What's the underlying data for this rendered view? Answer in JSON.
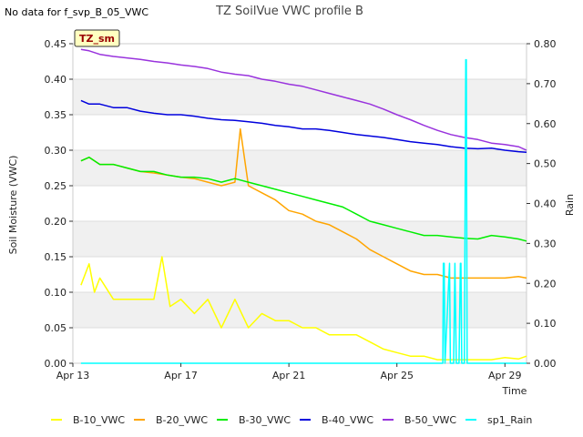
{
  "note": "No data for f_svp_B_05_VWC",
  "chart_data": {
    "type": "line",
    "title": "TZ SoilVue VWC profile B",
    "badge": "TZ_sm",
    "xlabel": "Time",
    "ylabel": "Soil Moisture (VWC)",
    "y2label": "Rain",
    "xlim": [
      0,
      16.8
    ],
    "ylim": [
      0.0,
      0.45
    ],
    "y2lim": [
      0.0,
      0.8
    ],
    "x_ticks": [
      {
        "value": 0,
        "label": "Apr 13"
      },
      {
        "value": 4,
        "label": "Apr 17"
      },
      {
        "value": 8,
        "label": "Apr 21"
      },
      {
        "value": 12,
        "label": "Apr 25"
      },
      {
        "value": 16,
        "label": "Apr 29"
      }
    ],
    "y_ticks": [
      "0.00",
      "0.05",
      "0.10",
      "0.15",
      "0.20",
      "0.25",
      "0.30",
      "0.35",
      "0.40",
      "0.45"
    ],
    "y2_ticks": [
      "0.00",
      "0.10",
      "0.20",
      "0.30",
      "0.40",
      "0.50",
      "0.60",
      "0.70",
      "0.80"
    ],
    "grid": true,
    "legend_position": "bottom",
    "series": [
      {
        "name": "B-10_VWC",
        "color": "#ffff00",
        "axis": "left",
        "x": [
          0.3,
          0.6,
          0.8,
          1.0,
          1.5,
          2.0,
          2.5,
          3.0,
          3.3,
          3.6,
          4.0,
          4.5,
          5.0,
          5.5,
          6.0,
          6.5,
          7.0,
          7.5,
          8.0,
          8.5,
          9.0,
          9.5,
          10.0,
          10.5,
          11.0,
          11.5,
          12.0,
          12.5,
          13.0,
          13.5,
          14.0,
          14.5,
          15.0,
          15.5,
          16.0,
          16.5,
          16.8
        ],
        "y": [
          0.11,
          0.14,
          0.1,
          0.12,
          0.09,
          0.09,
          0.09,
          0.09,
          0.15,
          0.08,
          0.09,
          0.07,
          0.09,
          0.05,
          0.09,
          0.05,
          0.07,
          0.06,
          0.06,
          0.05,
          0.05,
          0.04,
          0.04,
          0.04,
          0.03,
          0.02,
          0.015,
          0.01,
          0.01,
          0.005,
          0.005,
          0.005,
          0.005,
          0.005,
          0.008,
          0.006,
          0.01
        ]
      },
      {
        "name": "B-20_VWC",
        "color": "#ffa500",
        "axis": "left",
        "x": [
          0.3,
          0.6,
          1.0,
          1.5,
          2.0,
          2.5,
          3.0,
          3.5,
          4.0,
          4.5,
          5.0,
          5.5,
          6.0,
          6.2,
          6.5,
          7.0,
          7.5,
          8.0,
          8.5,
          9.0,
          9.5,
          10.0,
          10.5,
          11.0,
          11.5,
          12.0,
          12.5,
          13.0,
          13.5,
          14.0,
          14.5,
          15.0,
          15.5,
          16.0,
          16.5,
          16.8
        ],
        "y": [
          0.285,
          0.29,
          0.28,
          0.28,
          0.275,
          0.27,
          0.268,
          0.265,
          0.262,
          0.26,
          0.255,
          0.25,
          0.255,
          0.33,
          0.25,
          0.24,
          0.23,
          0.215,
          0.21,
          0.2,
          0.195,
          0.185,
          0.175,
          0.16,
          0.15,
          0.14,
          0.13,
          0.125,
          0.125,
          0.12,
          0.12,
          0.12,
          0.12,
          0.12,
          0.122,
          0.12
        ]
      },
      {
        "name": "B-30_VWC",
        "color": "#00ee00",
        "axis": "left",
        "x": [
          0.3,
          0.6,
          1.0,
          1.5,
          2.0,
          2.5,
          3.0,
          3.5,
          4.0,
          4.5,
          5.0,
          5.5,
          6.0,
          6.5,
          7.0,
          7.5,
          8.0,
          8.5,
          9.0,
          9.5,
          10.0,
          10.5,
          11.0,
          11.5,
          12.0,
          12.5,
          13.0,
          13.5,
          14.0,
          14.5,
          15.0,
          15.5,
          16.0,
          16.5,
          16.8
        ],
        "y": [
          0.285,
          0.29,
          0.28,
          0.28,
          0.275,
          0.27,
          0.27,
          0.265,
          0.262,
          0.262,
          0.26,
          0.255,
          0.26,
          0.255,
          0.25,
          0.245,
          0.24,
          0.235,
          0.23,
          0.225,
          0.22,
          0.21,
          0.2,
          0.195,
          0.19,
          0.185,
          0.18,
          0.18,
          0.178,
          0.176,
          0.175,
          0.18,
          0.178,
          0.175,
          0.172
        ]
      },
      {
        "name": "B-40_VWC",
        "color": "#0000dd",
        "axis": "left",
        "x": [
          0.3,
          0.6,
          1.0,
          1.5,
          2.0,
          2.5,
          3.0,
          3.5,
          4.0,
          4.5,
          5.0,
          5.5,
          6.0,
          6.5,
          7.0,
          7.5,
          8.0,
          8.5,
          9.0,
          9.5,
          10.0,
          10.5,
          11.0,
          11.5,
          12.0,
          12.5,
          13.0,
          13.5,
          14.0,
          14.5,
          15.0,
          15.5,
          16.0,
          16.5,
          16.8
        ],
        "y": [
          0.37,
          0.365,
          0.365,
          0.36,
          0.36,
          0.355,
          0.352,
          0.35,
          0.35,
          0.348,
          0.345,
          0.343,
          0.342,
          0.34,
          0.338,
          0.335,
          0.333,
          0.33,
          0.33,
          0.328,
          0.325,
          0.322,
          0.32,
          0.318,
          0.315,
          0.312,
          0.31,
          0.308,
          0.305,
          0.303,
          0.302,
          0.303,
          0.3,
          0.298,
          0.297
        ]
      },
      {
        "name": "B-50_VWC",
        "color": "#9933dd",
        "axis": "left",
        "x": [
          0.3,
          0.6,
          1.0,
          1.5,
          2.0,
          2.5,
          3.0,
          3.5,
          4.0,
          4.5,
          5.0,
          5.5,
          6.0,
          6.5,
          7.0,
          7.5,
          8.0,
          8.5,
          9.0,
          9.5,
          10.0,
          10.5,
          11.0,
          11.5,
          12.0,
          12.5,
          13.0,
          13.5,
          14.0,
          14.5,
          15.0,
          15.5,
          16.0,
          16.5,
          16.8
        ],
        "y": [
          0.442,
          0.44,
          0.435,
          0.432,
          0.43,
          0.428,
          0.425,
          0.423,
          0.42,
          0.418,
          0.415,
          0.41,
          0.407,
          0.405,
          0.4,
          0.397,
          0.393,
          0.39,
          0.385,
          0.38,
          0.375,
          0.37,
          0.365,
          0.358,
          0.35,
          0.343,
          0.335,
          0.328,
          0.322,
          0.318,
          0.315,
          0.31,
          0.308,
          0.305,
          0.3
        ]
      },
      {
        "name": "sp1_Rain",
        "color": "#00ffff",
        "axis": "right",
        "x": [
          0.3,
          13.7,
          13.72,
          13.75,
          13.78,
          13.95,
          13.98,
          14.1,
          14.15,
          14.2,
          14.3,
          14.35,
          14.37,
          14.4,
          14.5,
          14.55,
          14.57,
          14.6,
          14.8,
          16.8
        ],
        "y": [
          0.0,
          0.0,
          0.25,
          0.25,
          0.0,
          0.25,
          0.0,
          0.0,
          0.25,
          0.0,
          0.0,
          0.25,
          0.25,
          0.0,
          0.0,
          0.76,
          0.76,
          0.0,
          0.0,
          0.0
        ]
      }
    ]
  }
}
